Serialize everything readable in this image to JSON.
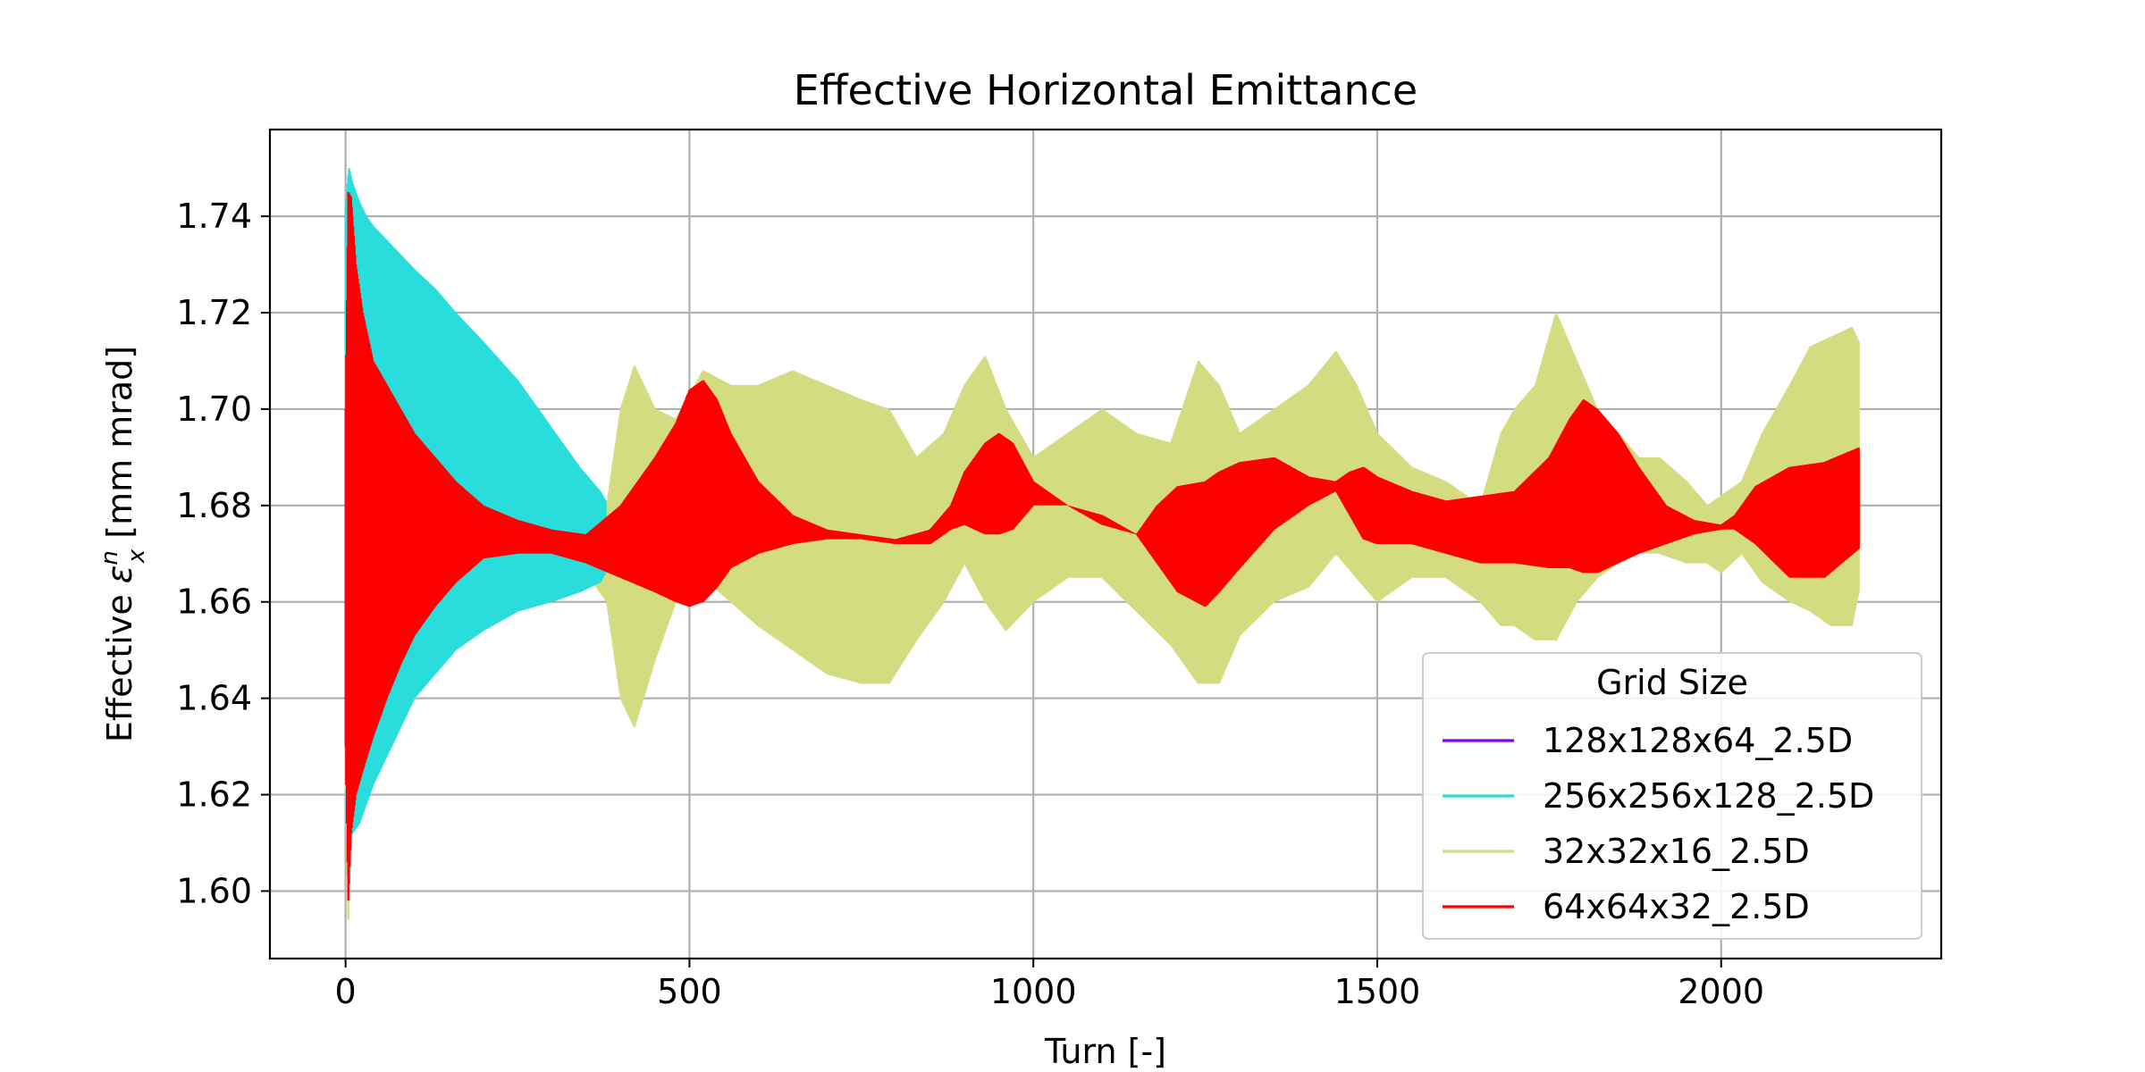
{
  "chart_data": {
    "type": "line",
    "title": "Effective Horizontal Emittance",
    "xlabel": "Turn [-]",
    "ylabel": {
      "prefix": "Effective ",
      "symbol": "ε",
      "superscript": "n",
      "subscript": "x",
      "suffix": " [mm mrad]"
    },
    "xlim": [
      -110,
      2320
    ],
    "ylim": [
      1.586,
      1.758
    ],
    "xticks": [
      0,
      500,
      1000,
      1500,
      2000
    ],
    "xtick_labels": [
      "0",
      "500",
      "1000",
      "1500",
      "2000"
    ],
    "yticks": [
      1.6,
      1.62,
      1.64,
      1.66,
      1.68,
      1.7,
      1.72,
      1.74
    ],
    "ytick_labels": [
      "1.60",
      "1.62",
      "1.64",
      "1.66",
      "1.68",
      "1.70",
      "1.72",
      "1.74"
    ],
    "grid": true,
    "legend": {
      "title": "Grid Size",
      "placement": "lower right"
    },
    "series": [
      {
        "name": "128x128x64_2.5D",
        "color": "#8000ff",
        "x": [
          0,
          4
        ],
        "y_low": [
          1.688,
          1.688
        ],
        "y_high": [
          1.688,
          1.688
        ]
      },
      {
        "name": "256x256x128_2.5D",
        "color": "#2adddd",
        "x": [
          0,
          5,
          10,
          20,
          30,
          40,
          60,
          80,
          100,
          130,
          160,
          200,
          250,
          300,
          340,
          370,
          378
        ],
        "y_low": [
          1.632,
          1.61,
          1.612,
          1.614,
          1.618,
          1.622,
          1.628,
          1.634,
          1.64,
          1.645,
          1.65,
          1.654,
          1.658,
          1.66,
          1.662,
          1.664,
          1.666
        ],
        "y_high": [
          1.742,
          1.75,
          1.747,
          1.743,
          1.74,
          1.738,
          1.735,
          1.732,
          1.729,
          1.725,
          1.72,
          1.714,
          1.706,
          1.696,
          1.688,
          1.683,
          1.681
        ]
      },
      {
        "name": "32x32x16_2.5D",
        "color": "#d4dc82",
        "x": [
          0,
          4,
          8,
          20,
          50,
          100,
          150,
          200,
          250,
          300,
          350,
          380,
          400,
          420,
          450,
          480,
          520,
          560,
          600,
          650,
          700,
          750,
          790,
          830,
          870,
          900,
          930,
          960,
          1000,
          1050,
          1100,
          1150,
          1200,
          1240,
          1270,
          1300,
          1350,
          1400,
          1440,
          1470,
          1500,
          1550,
          1600,
          1650,
          1680,
          1700,
          1730,
          1760,
          1790,
          1820,
          1850,
          1880,
          1910,
          1950,
          1980,
          2000,
          2030,
          2060,
          2100,
          2130,
          2160,
          2190,
          2200
        ],
        "y_low": [
          1.63,
          1.594,
          1.64,
          1.645,
          1.655,
          1.66,
          1.665,
          1.668,
          1.67,
          1.668,
          1.666,
          1.66,
          1.64,
          1.634,
          1.648,
          1.66,
          1.665,
          1.66,
          1.655,
          1.65,
          1.645,
          1.643,
          1.643,
          1.652,
          1.66,
          1.668,
          1.66,
          1.654,
          1.66,
          1.665,
          1.665,
          1.658,
          1.651,
          1.643,
          1.643,
          1.653,
          1.66,
          1.663,
          1.67,
          1.665,
          1.66,
          1.665,
          1.665,
          1.66,
          1.655,
          1.655,
          1.652,
          1.652,
          1.66,
          1.665,
          1.668,
          1.67,
          1.67,
          1.668,
          1.668,
          1.666,
          1.67,
          1.664,
          1.66,
          1.658,
          1.655,
          1.655,
          1.662
        ],
        "y_high": [
          1.7,
          1.72,
          1.71,
          1.705,
          1.698,
          1.695,
          1.69,
          1.685,
          1.68,
          1.677,
          1.675,
          1.68,
          1.7,
          1.709,
          1.7,
          1.698,
          1.708,
          1.705,
          1.705,
          1.708,
          1.705,
          1.702,
          1.7,
          1.69,
          1.695,
          1.705,
          1.711,
          1.7,
          1.69,
          1.695,
          1.7,
          1.695,
          1.693,
          1.71,
          1.705,
          1.695,
          1.7,
          1.705,
          1.712,
          1.705,
          1.695,
          1.688,
          1.685,
          1.68,
          1.695,
          1.7,
          1.705,
          1.72,
          1.71,
          1.7,
          1.695,
          1.69,
          1.69,
          1.685,
          1.68,
          1.682,
          1.685,
          1.695,
          1.705,
          1.713,
          1.715,
          1.717,
          1.714
        ]
      },
      {
        "name": "64x64x32_2.5D",
        "color": "#ff0000",
        "x": [
          0,
          4,
          8,
          15,
          25,
          40,
          60,
          80,
          100,
          130,
          160,
          200,
          250,
          300,
          350,
          400,
          450,
          480,
          500,
          520,
          540,
          560,
          600,
          650,
          700,
          750,
          800,
          850,
          880,
          900,
          930,
          950,
          970,
          1000,
          1050,
          1100,
          1150,
          1180,
          1210,
          1250,
          1270,
          1300,
          1350,
          1400,
          1440,
          1460,
          1480,
          1500,
          1550,
          1600,
          1650,
          1700,
          1750,
          1780,
          1800,
          1820,
          1850,
          1880,
          1920,
          1960,
          2000,
          2020,
          2050,
          2100,
          2150,
          2200
        ],
        "y_low": [
          1.63,
          1.598,
          1.612,
          1.62,
          1.625,
          1.632,
          1.64,
          1.647,
          1.653,
          1.659,
          1.664,
          1.669,
          1.67,
          1.67,
          1.668,
          1.665,
          1.662,
          1.66,
          1.659,
          1.66,
          1.663,
          1.667,
          1.67,
          1.672,
          1.673,
          1.673,
          1.672,
          1.672,
          1.675,
          1.676,
          1.674,
          1.674,
          1.675,
          1.68,
          1.68,
          1.676,
          1.674,
          1.668,
          1.662,
          1.659,
          1.662,
          1.667,
          1.675,
          1.68,
          1.683,
          1.678,
          1.673,
          1.672,
          1.672,
          1.67,
          1.668,
          1.668,
          1.667,
          1.667,
          1.666,
          1.666,
          1.668,
          1.67,
          1.672,
          1.674,
          1.675,
          1.675,
          1.672,
          1.665,
          1.665,
          1.671
        ],
        "y_high": [
          1.7,
          1.745,
          1.744,
          1.73,
          1.72,
          1.71,
          1.705,
          1.7,
          1.695,
          1.69,
          1.685,
          1.68,
          1.677,
          1.675,
          1.674,
          1.68,
          1.69,
          1.697,
          1.704,
          1.706,
          1.702,
          1.695,
          1.685,
          1.678,
          1.675,
          1.674,
          1.673,
          1.675,
          1.68,
          1.687,
          1.693,
          1.695,
          1.693,
          1.685,
          1.68,
          1.678,
          1.674,
          1.68,
          1.684,
          1.685,
          1.687,
          1.689,
          1.69,
          1.686,
          1.685,
          1.687,
          1.688,
          1.686,
          1.683,
          1.681,
          1.682,
          1.683,
          1.69,
          1.698,
          1.702,
          1.7,
          1.695,
          1.688,
          1.68,
          1.677,
          1.676,
          1.678,
          1.684,
          1.688,
          1.689,
          1.692
        ]
      }
    ]
  }
}
